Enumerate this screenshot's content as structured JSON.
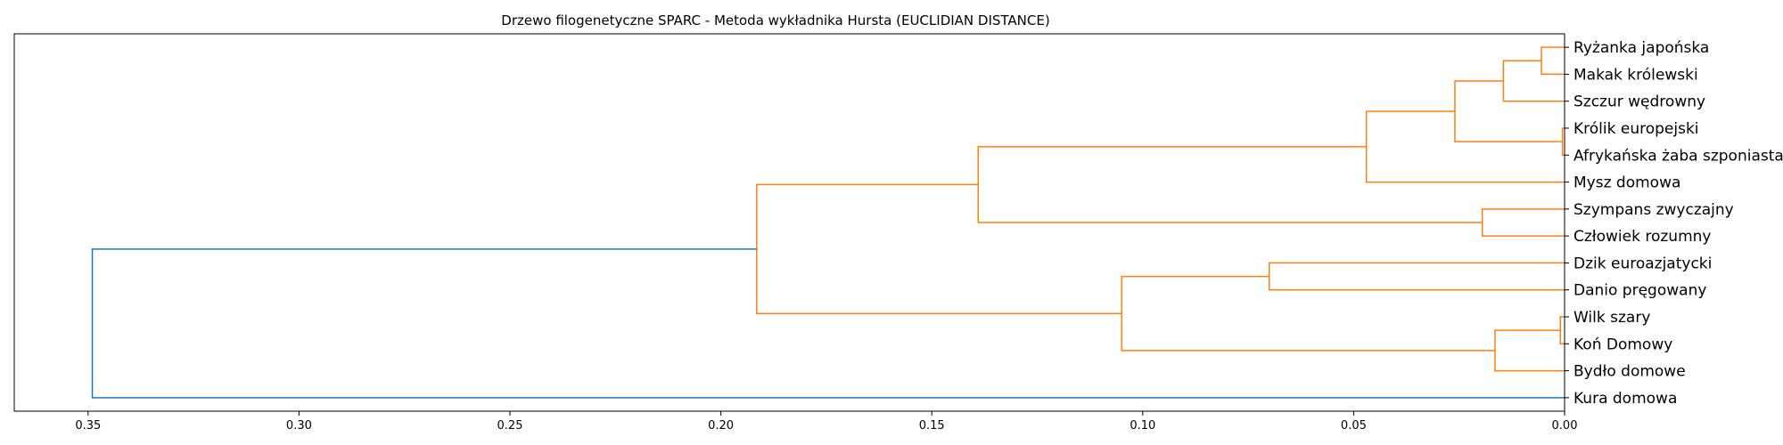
{
  "chart_data": {
    "type": "dendrogram",
    "title": "Drzewo filogenetyczne SPARC - Metoda wykładnika Hursta (EUCLIDIAN DISTANCE)",
    "xlabel": "",
    "ylabel": "",
    "orientation": "left",
    "xlim": [
      0.3675,
      0.0
    ],
    "xticks": [
      0.35,
      0.3,
      0.25,
      0.2,
      0.15,
      0.1,
      0.05,
      0.0
    ],
    "xtick_labels": [
      "0.35",
      "0.30",
      "0.25",
      "0.20",
      "0.15",
      "0.10",
      "0.05",
      "0.00"
    ],
    "grid": false,
    "colors": {
      "cluster": "#ff7f0e",
      "root": "#1f77b4",
      "axis": "#000000"
    },
    "leaves": [
      "Ryżanka japońska",
      "Makak królewski",
      "Szczur wędrowny",
      "Królik europejski",
      "Afrykańska żaba szponiasta",
      "Mysz domowa",
      "Szympans zwyczajny",
      "Człowiek rozumny",
      "Dzik euroazjatycki",
      "Danio pręgowany",
      "Wilk szary",
      "Koń Domowy",
      "Bydło domowe",
      "Kura domowa"
    ],
    "merges": [
      {
        "a": "L0",
        "b": "L1",
        "height": 0.0055,
        "color": "cluster"
      },
      {
        "a": "M0",
        "b": "L2",
        "height": 0.0145,
        "color": "cluster"
      },
      {
        "a": "L3",
        "b": "L4",
        "height": 0.0005,
        "color": "cluster"
      },
      {
        "a": "M1",
        "b": "M2",
        "height": 0.026,
        "color": "cluster"
      },
      {
        "a": "M3",
        "b": "L5",
        "height": 0.047,
        "color": "cluster"
      },
      {
        "a": "L6",
        "b": "L7",
        "height": 0.0195,
        "color": "cluster"
      },
      {
        "a": "M4",
        "b": "M5",
        "height": 0.139,
        "color": "cluster"
      },
      {
        "a": "L8",
        "b": "L9",
        "height": 0.07,
        "color": "cluster"
      },
      {
        "a": "L10",
        "b": "L11",
        "height": 0.001,
        "color": "cluster"
      },
      {
        "a": "M8",
        "b": "L12",
        "height": 0.0165,
        "color": "cluster"
      },
      {
        "a": "M7",
        "b": "M9",
        "height": 0.105,
        "color": "cluster"
      },
      {
        "a": "M6",
        "b": "M10",
        "height": 0.1915,
        "color": "cluster"
      },
      {
        "a": "M11",
        "b": "L13",
        "height": 0.349,
        "color": "root"
      }
    ]
  }
}
